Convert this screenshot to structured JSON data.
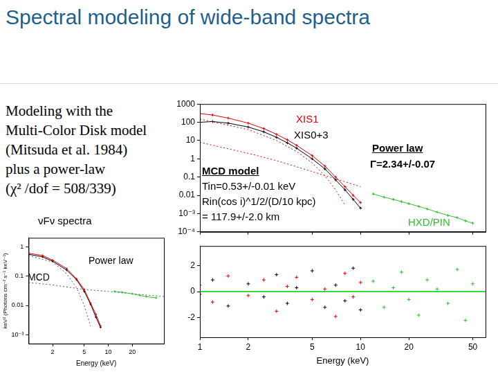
{
  "slide": {
    "title": "Spectral modeling of wide-band spectra",
    "text": [
      "Modeling with the",
      "Multi-Color Disk model",
      "(Mitsuda et al. 1984)",
      "plus a power-law",
      "(χ² /dof = 508/339)"
    ]
  },
  "chart_data": [
    {
      "type": "scatter",
      "log": true,
      "grid": false,
      "tick_labels": "y",
      "xlim": [
        1,
        60
      ],
      "xticks": [
        1,
        2,
        5,
        10,
        20,
        50
      ],
      "ylim": [
        0.0001,
        1000
      ],
      "yticks": [
        {
          "value": 0.0001,
          "label": "10⁻⁴"
        },
        {
          "value": 0.001,
          "label": "10⁻³"
        },
        0.01,
        0.1,
        1,
        10,
        100,
        1000
      ],
      "annotations": [
        {
          "text": "XIS1",
          "color": "#e00000"
        },
        {
          "text": "XIS0+3",
          "color": "#000000"
        },
        {
          "text": "Power law",
          "color": "#000000"
        },
        {
          "text": "Γ=2.34+/-0.07",
          "color": "#000000"
        },
        {
          "text": "MCD model",
          "color": "#000000"
        },
        {
          "text": "Tin=0.53+/-0.01 keV",
          "color": "#000000"
        },
        {
          "text": "Rin(cos i)^1/2/(D/10 kpc)",
          "color": "#000000"
        },
        {
          "text": "= 117.9+/-2.0 km",
          "color": "#000000"
        },
        {
          "text": "HXD/PIN",
          "color": "#33bb33"
        }
      ],
      "series": [
        {
          "name": "XIS1",
          "color": "#e00000",
          "marker": "cross",
          "line_style": "solid",
          "x": [
            1,
            1.2,
            1.5,
            2,
            2.5,
            3,
            3.5,
            4,
            5,
            6,
            7,
            8,
            9,
            10
          ],
          "values": [
            300,
            250,
            170,
            90,
            45,
            22,
            11,
            5.5,
            1.5,
            0.4,
            0.1,
            0.03,
            0.01,
            0.004
          ]
        },
        {
          "name": "XIS0+3",
          "color": "#000000",
          "marker": "cross",
          "line_style": "solid",
          "x": [
            1,
            1.2,
            1.5,
            2,
            2.5,
            3,
            3.5,
            4,
            5,
            6,
            7,
            8,
            9,
            10
          ],
          "values": [
            100,
            110,
            90,
            55,
            30,
            15,
            7.5,
            3.8,
            1,
            0.28,
            0.07,
            0.02,
            0.006,
            0.002
          ]
        },
        {
          "name": "HXD/PIN",
          "color": "#33bb33",
          "marker": "cross",
          "line_style": "solid",
          "x": [
            12,
            14,
            16,
            18,
            20,
            23,
            26,
            30,
            35,
            40,
            45,
            50
          ],
          "values": [
            0.012,
            0.008,
            0.006,
            0.0045,
            0.0035,
            0.0025,
            0.0018,
            0.0012,
            0.0008,
            0.0006,
            0.0004,
            0.0003
          ]
        },
        {
          "name": "MCD model",
          "color": "#e00000",
          "marker": "none",
          "line_style": "dotted",
          "x": [
            1,
            2,
            3,
            4,
            5,
            6,
            7,
            8
          ],
          "values": [
            150,
            40,
            10,
            2.5,
            0.6,
            0.12,
            0.02,
            0.003
          ]
        },
        {
          "name": "Power law",
          "color": "#e00000",
          "marker": "none",
          "line_style": "dotted",
          "x": [
            1,
            2,
            3,
            5,
            7,
            10
          ],
          "values": [
            8,
            2,
            0.8,
            0.2,
            0.08,
            0.03
          ]
        }
      ]
    },
    {
      "type": "scatter",
      "log": "x",
      "grid": false,
      "xlabel": "Energy (keV)",
      "xlim": [
        1,
        60
      ],
      "xticks": [
        1,
        2,
        5,
        10,
        20,
        50
      ],
      "ylim": [
        -3.5,
        3.5
      ],
      "yticks": [
        -2,
        0,
        2
      ],
      "series": [
        {
          "color": "#e00000",
          "marker": "cross",
          "line_style": "none",
          "x": [
            1,
            1.2,
            1.5,
            2,
            2.5,
            3,
            3.5,
            4,
            5,
            6,
            7,
            8,
            9,
            10
          ],
          "values": [
            0.5,
            -0.8,
            1.2,
            -0.3,
            0.9,
            -1.5,
            0.4,
            1.1,
            -0.6,
            0.2,
            -1.9,
            1.4,
            -0.4,
            0.7
          ]
        },
        {
          "color": "#000000",
          "marker": "cross",
          "line_style": "none",
          "x": [
            1,
            1.2,
            1.5,
            2,
            2.5,
            3,
            3.5,
            4,
            5,
            6,
            7,
            8,
            9,
            10
          ],
          "values": [
            -0.2,
            0.9,
            -1.1,
            0.6,
            -0.4,
            1.3,
            -0.9,
            0.3,
            1.6,
            -1.2,
            0.5,
            -0.7,
            1.8,
            -1.4
          ]
        },
        {
          "color": "#33bb33",
          "marker": "cross",
          "line_style": "none",
          "x": [
            12,
            14,
            16,
            18,
            20,
            23,
            26,
            30,
            35,
            40,
            45,
            50
          ],
          "values": [
            0.8,
            -1.2,
            0.3,
            1.5,
            -0.6,
            -1.8,
            0.9,
            0.2,
            -0.9,
            1.7,
            -2.2,
            0.6
          ]
        },
        {
          "color": "#33dd33",
          "marker": "none",
          "line_style": "solid",
          "x": [
            1,
            60
          ],
          "values": [
            0,
            0
          ]
        }
      ]
    },
    {
      "type": "scatter",
      "log": true,
      "grid": false,
      "title": "νFν spectra",
      "xlabel": "Energy (keV)",
      "ylabel": "keV² (Photons cm⁻² s⁻¹ keV⁻¹)",
      "xlim": [
        1,
        50
      ],
      "xticks": [
        2,
        5,
        10,
        20
      ],
      "ylim": [
        0.0005,
        2
      ],
      "yticks": [
        {
          "value": 0.001,
          "label": "10⁻³"
        },
        0.01,
        0.1,
        1
      ],
      "annotations": [
        {
          "text": "MCD",
          "color": "#000000"
        },
        {
          "text": "Power law",
          "color": "#000000"
        }
      ],
      "series": [
        {
          "color": "#e00000",
          "marker": "cross",
          "line_style": "solid",
          "x": [
            1,
            1.5,
            2,
            3,
            4,
            5,
            6,
            7,
            8
          ],
          "values": [
            0.6,
            0.5,
            0.35,
            0.18,
            0.08,
            0.035,
            0.012,
            0.005,
            0.002
          ]
        },
        {
          "color": "#000000",
          "marker": "cross",
          "line_style": "solid",
          "x": [
            1,
            1.5,
            2,
            3,
            4,
            5,
            6,
            7,
            8
          ],
          "values": [
            0.55,
            0.45,
            0.32,
            0.16,
            0.075,
            0.03,
            0.011,
            0.004,
            0.0018
          ]
        },
        {
          "color": "#33bb33",
          "marker": "cross",
          "line_style": "solid",
          "x": [
            12,
            15,
            20,
            25,
            30,
            40
          ],
          "values": [
            0.03,
            0.028,
            0.025,
            0.022,
            0.02,
            0.018
          ]
        },
        {
          "name": "MCD",
          "color": "#555555",
          "marker": "none",
          "line_style": "dotted",
          "x": [
            1,
            2,
            3,
            4,
            5,
            6
          ],
          "values": [
            0.5,
            0.3,
            0.12,
            0.04,
            0.01,
            0.002
          ]
        },
        {
          "name": "Power law",
          "color": "#555555",
          "marker": "none",
          "line_style": "dotted",
          "x": [
            1,
            2,
            5,
            10,
            20,
            50
          ],
          "values": [
            0.06,
            0.05,
            0.035,
            0.03,
            0.025,
            0.02
          ]
        }
      ]
    }
  ]
}
